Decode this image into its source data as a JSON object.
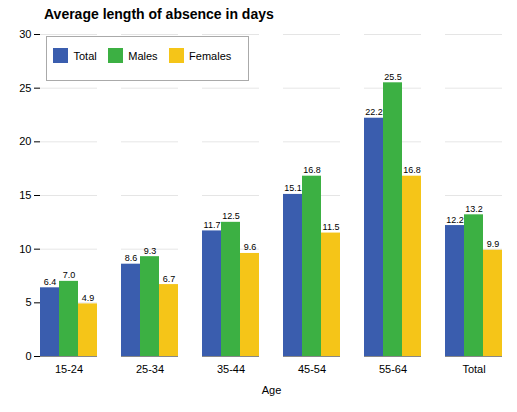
{
  "chart_data": {
    "type": "bar",
    "title": "Average length of absence in days",
    "xlabel": "Age",
    "categories": [
      "15-24",
      "25-34",
      "35-44",
      "45-54",
      "55-64",
      "Total"
    ],
    "series": [
      {
        "name": "Total",
        "color": "#3a5dae",
        "values": [
          6.4,
          8.6,
          11.7,
          15.1,
          22.2,
          12.2
        ],
        "value_labels": [
          "6.4",
          "8.6",
          "11.7",
          "15.1",
          "22.2",
          "12.2"
        ]
      },
      {
        "name": "Males",
        "color": "#3cb043",
        "values": [
          7.0,
          9.3,
          12.5,
          16.8,
          25.5,
          13.2
        ],
        "value_labels": [
          "7.0",
          "9.3",
          "12.5",
          "16.8",
          "25.5",
          "13.2"
        ]
      },
      {
        "name": "Females",
        "color": "#f5c518",
        "values": [
          4.9,
          6.7,
          9.6,
          11.5,
          16.8,
          9.9
        ],
        "value_labels": [
          "4.9",
          "6.7",
          "9.6",
          "11.5",
          "16.8",
          "9.9"
        ]
      }
    ],
    "ylim": [
      0,
      30
    ],
    "yticks": [
      0,
      5,
      10,
      15,
      20,
      25,
      30
    ],
    "grid": true,
    "legend": "upper left",
    "data_labels": true
  }
}
